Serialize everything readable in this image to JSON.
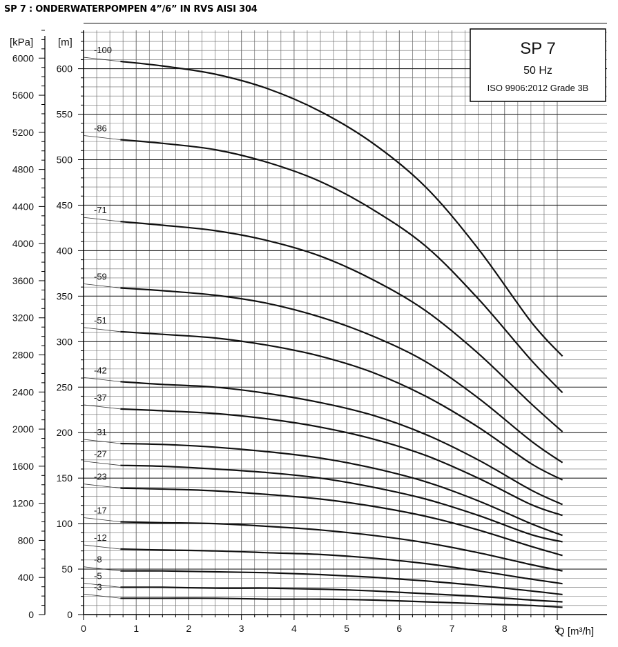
{
  "page_title": "SP 7 : ONDERWATERPOMPEN 4”/6” IN RVS AISI 304",
  "info_box": {
    "title": "SP 7",
    "frequency": "50 Hz",
    "standard": "ISO 9906:2012 Grade 3B"
  },
  "colors": {
    "grid": "#6e6e6e",
    "curve": "#111111",
    "axis": "#000000"
  },
  "chart_data": {
    "type": "line",
    "xlabel": "Q [m³/h]",
    "ylabel": "[m]",
    "ylabel_secondary": "[kPa]",
    "xlim": [
      0,
      9.2
    ],
    "ylim": [
      0,
      650
    ],
    "x_ticks": [
      "0",
      "1",
      "2",
      "3",
      "4",
      "5",
      "6",
      "7",
      "8",
      "9"
    ],
    "y_ticks": [
      "0",
      "50",
      "100",
      "150",
      "200",
      "250",
      "300",
      "350",
      "400",
      "450",
      "500",
      "550",
      "600"
    ],
    "y2_ticks": [
      "0",
      "400",
      "800",
      "1200",
      "1600",
      "2000",
      "2400",
      "2800",
      "3200",
      "3600",
      "4000",
      "4400",
      "4800",
      "5200",
      "5600",
      "6000"
    ],
    "grid": true,
    "x": [
      0.7,
      1.5,
      2.5,
      3.5,
      4.5,
      5.5,
      6.5,
      7.5,
      8.5,
      9.1
    ],
    "series": [
      {
        "name": "-100",
        "values": [
          608,
          603,
          594,
          578,
          553,
          518,
          470,
          402,
          322,
          284
        ]
      },
      {
        "name": "-86",
        "values": [
          522,
          518,
          511,
          497,
          476,
          445,
          405,
          347,
          280,
          244
        ]
      },
      {
        "name": "-71",
        "values": [
          432,
          428,
          422,
          411,
          394,
          368,
          334,
          287,
          232,
          201
        ]
      },
      {
        "name": "-59",
        "values": [
          359,
          356,
          351,
          342,
          327,
          306,
          278,
          238,
          191,
          167
        ]
      },
      {
        "name": "-51",
        "values": [
          311,
          308,
          304,
          296,
          284,
          266,
          240,
          206,
          166,
          148
        ]
      },
      {
        "name": "-42",
        "values": [
          256,
          253,
          250,
          243,
          233,
          219,
          198,
          170,
          137,
          121
        ]
      },
      {
        "name": "-37",
        "values": [
          226,
          224,
          221,
          215,
          206,
          193,
          175,
          150,
          121,
          109
        ]
      },
      {
        "name": "-31",
        "values": [
          188,
          187,
          184,
          179,
          172,
          161,
          146,
          125,
          100,
          87
        ]
      },
      {
        "name": "-27",
        "values": [
          164,
          163,
          160,
          156,
          150,
          140,
          127,
          109,
          88,
          80
        ]
      },
      {
        "name": "-23",
        "values": [
          139,
          138,
          136,
          132,
          127,
          119,
          108,
          93,
          75,
          65
        ]
      },
      {
        "name": "-17",
        "values": [
          102,
          101,
          100,
          97,
          93,
          87,
          79,
          68,
          55,
          48
        ]
      },
      {
        "name": "-12",
        "values": [
          72,
          71,
          70,
          68,
          66,
          62,
          56,
          48,
          39,
          34
        ]
      },
      {
        "name": "-8",
        "values": [
          48,
          48,
          47,
          46,
          44,
          41,
          37,
          32,
          26,
          22
        ]
      },
      {
        "name": "-5",
        "values": [
          30,
          30,
          29,
          29,
          28,
          26,
          23,
          20,
          16,
          14
        ]
      },
      {
        "name": "-3",
        "values": [
          18,
          18,
          18,
          17,
          17,
          16,
          14,
          12,
          10,
          8
        ]
      }
    ]
  }
}
